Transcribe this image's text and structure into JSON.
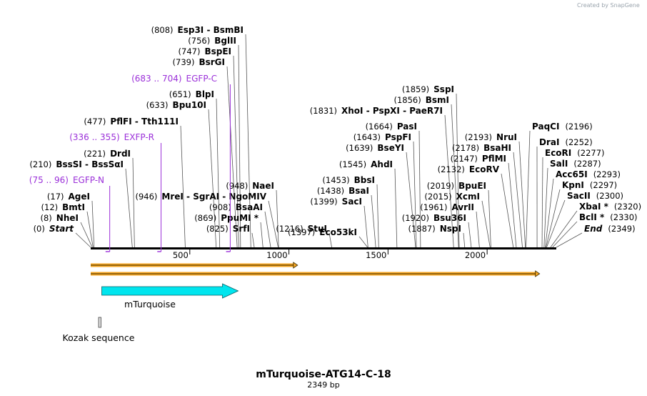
{
  "credit": "Created by SnapGene",
  "title": "mTurquoise-ATG14-C-18",
  "length_label": "2349 bp",
  "total_bp": 2349,
  "ticks": [
    {
      "pos": 500,
      "label": "500"
    },
    {
      "pos": 1000,
      "label": "1000"
    },
    {
      "pos": 1500,
      "label": "1500"
    },
    {
      "pos": 2000,
      "label": "2000"
    }
  ],
  "sites": [
    {
      "key": "start",
      "pos": 0,
      "pos_label": "(0)",
      "name": "Start",
      "italic": true
    },
    {
      "key": "nhei",
      "pos": 8,
      "pos_label": "(8)",
      "name": "NheI"
    },
    {
      "key": "bmti",
      "pos": 12,
      "pos_label": "(12)",
      "name": "BmtI"
    },
    {
      "key": "agei",
      "pos": 17,
      "pos_label": "(17)",
      "name": "AgeI"
    },
    {
      "key": "bsssi",
      "pos": 210,
      "pos_label": "(210)",
      "name": "BssSI  -  BssSαI"
    },
    {
      "key": "drdi",
      "pos": 221,
      "pos_label": "(221)",
      "name": "DrdI"
    },
    {
      "key": "pflfi",
      "pos": 477,
      "pos_label": "(477)",
      "name": "PflFI  -  Tth111I"
    },
    {
      "key": "bpu10i",
      "pos": 633,
      "pos_label": "(633)",
      "name": "Bpu10I"
    },
    {
      "key": "blpi",
      "pos": 651,
      "pos_label": "(651)",
      "name": "BlpI"
    },
    {
      "key": "bsrgi",
      "pos": 739,
      "pos_label": "(739)",
      "name": "BsrGI"
    },
    {
      "key": "bspei",
      "pos": 747,
      "pos_label": "(747)",
      "name": "BspEI"
    },
    {
      "key": "bglii",
      "pos": 756,
      "pos_label": "(756)",
      "name": "BglII"
    },
    {
      "key": "esp3i",
      "pos": 808,
      "pos_label": "(808)",
      "name": "Esp3I  -  BsmBI"
    },
    {
      "key": "mrei",
      "pos": 946,
      "pos_label": "(946)",
      "name": "MreI  -  SgrAI  -  NgoMIV"
    },
    {
      "key": "naei",
      "pos": 948,
      "pos_label": "(948)",
      "name": "NaeI"
    },
    {
      "key": "bsaai",
      "pos": 908,
      "pos_label": "(908)",
      "name": "BsaAI"
    },
    {
      "key": "ppumi",
      "pos": 869,
      "pos_label": "(869)",
      "name": "PpuMI *"
    },
    {
      "key": "srfi",
      "pos": 825,
      "pos_label": "(825)",
      "name": "SrfI"
    },
    {
      "key": "stui",
      "pos": 1216,
      "pos_label": "(1216)",
      "name": "StuI"
    },
    {
      "key": "eco53ki",
      "pos": 1397,
      "pos_label": "(1397)",
      "name": "Eco53kI"
    },
    {
      "key": "saci",
      "pos": 1399,
      "pos_label": "(1399)",
      "name": "SacI"
    },
    {
      "key": "bsai",
      "pos": 1438,
      "pos_label": "(1438)",
      "name": "BsaI"
    },
    {
      "key": "bbsi",
      "pos": 1453,
      "pos_label": "(1453)",
      "name": "BbsI"
    },
    {
      "key": "ahdi",
      "pos": 1545,
      "pos_label": "(1545)",
      "name": "AhdI"
    },
    {
      "key": "bseyi",
      "pos": 1639,
      "pos_label": "(1639)",
      "name": "BseYI"
    },
    {
      "key": "pspfi",
      "pos": 1643,
      "pos_label": "(1643)",
      "name": "PspFI"
    },
    {
      "key": "pasi",
      "pos": 1664,
      "pos_label": "(1664)",
      "name": "PasI"
    },
    {
      "key": "xhoi",
      "pos": 1831,
      "pos_label": "(1831)",
      "name": "XhoI  -  PspXI  -  PaeR7I"
    },
    {
      "key": "bsmi",
      "pos": 1856,
      "pos_label": "(1856)",
      "name": "BsmI"
    },
    {
      "key": "sspi",
      "pos": 1859,
      "pos_label": "(1859)",
      "name": "SspI"
    },
    {
      "key": "nspi",
      "pos": 1887,
      "pos_label": "(1887)",
      "name": "NspI"
    },
    {
      "key": "bsu36i",
      "pos": 1920,
      "pos_label": "(1920)",
      "name": "Bsu36I"
    },
    {
      "key": "avrii",
      "pos": 1961,
      "pos_label": "(1961)",
      "name": "AvrII"
    },
    {
      "key": "xcmi",
      "pos": 2015,
      "pos_label": "(2015)",
      "name": "XcmI"
    },
    {
      "key": "bpuei",
      "pos": 2019,
      "pos_label": "(2019)",
      "name": "BpuEI"
    },
    {
      "key": "ecorv",
      "pos": 2132,
      "pos_label": "(2132)",
      "name": "EcoRV"
    },
    {
      "key": "pflmi",
      "pos": 2147,
      "pos_label": "(2147)",
      "name": "PflMI"
    },
    {
      "key": "bsahi",
      "pos": 2178,
      "pos_label": "(2178)",
      "name": "BsaHI"
    },
    {
      "key": "frui",
      "pos": 2193,
      "pos_label": "(2193)",
      "name": "NruI"
    },
    {
      "key": "paqci",
      "pos": 2196,
      "pos_label": "(2196)",
      "name": "PaqCI"
    },
    {
      "key": "drai",
      "pos": 2252,
      "pos_label": "(2252)",
      "name": "DraI"
    },
    {
      "key": "ecori",
      "pos": 2277,
      "pos_label": "(2277)",
      "name": "EcoRI"
    },
    {
      "key": "sali",
      "pos": 2287,
      "pos_label": "(2287)",
      "name": "SalI"
    },
    {
      "key": "acc65i",
      "pos": 2293,
      "pos_label": "(2293)",
      "name": "Acc65I"
    },
    {
      "key": "kpni",
      "pos": 2297,
      "pos_label": "(2297)",
      "name": "KpnI"
    },
    {
      "key": "sacii",
      "pos": 2300,
      "pos_label": "(2300)",
      "name": "SacII"
    },
    {
      "key": "xbai",
      "pos": 2320,
      "pos_label": "(2320)",
      "name": "XbaI *"
    },
    {
      "key": "bcli",
      "pos": 2330,
      "pos_label": "(2330)",
      "name": "BclI *"
    },
    {
      "key": "end",
      "pos": 2349,
      "pos_label": "(2349)",
      "name": "End",
      "italic": true
    }
  ],
  "primers": [
    {
      "key": "egfpc",
      "range": "(683 .. 704)",
      "name": "EGFP-C",
      "start": 683,
      "end": 704
    },
    {
      "key": "exfpr",
      "range": "(336 .. 355)",
      "name": "EXFP-R",
      "start": 336,
      "end": 355
    },
    {
      "key": "egfpn",
      "range": "(75 .. 96)",
      "name": "EGFP-N",
      "start": 75,
      "end": 96
    }
  ],
  "features": [
    {
      "key": "orf1",
      "start": 0,
      "end": 1044,
      "type": "orf"
    },
    {
      "key": "orf2",
      "start": 0,
      "end": 2265,
      "type": "orf"
    },
    {
      "key": "mturquoise",
      "name": "mTurquoise",
      "start": 27,
      "end": 744,
      "type": "cds"
    },
    {
      "key": "kozak",
      "name": "Kozak sequence",
      "start": 18,
      "end": 27,
      "type": "misc"
    }
  ],
  "colors": {
    "primer": "#9b30d9",
    "cds": "#00e5ee",
    "orf": "#f5a623",
    "backbone": "#000000",
    "leader": "#555555"
  }
}
